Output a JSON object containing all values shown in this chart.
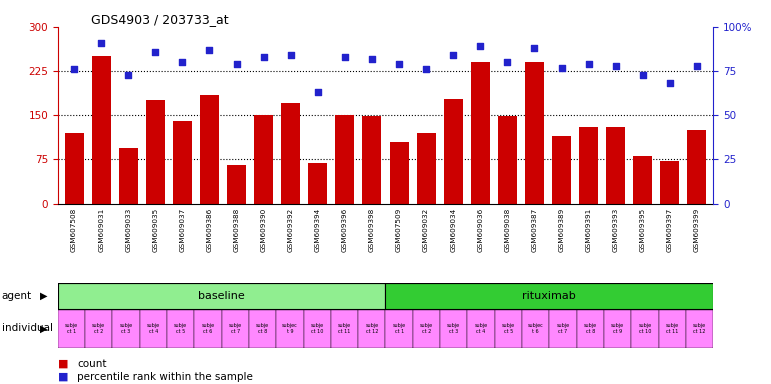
{
  "title": "GDS4903 / 203733_at",
  "samples": [
    "GSM607508",
    "GSM609031",
    "GSM609033",
    "GSM609035",
    "GSM609037",
    "GSM609386",
    "GSM609388",
    "GSM609390",
    "GSM609392",
    "GSM609394",
    "GSM609396",
    "GSM609398",
    "GSM607509",
    "GSM609032",
    "GSM609034",
    "GSM609036",
    "GSM609038",
    "GSM609387",
    "GSM609389",
    "GSM609391",
    "GSM609393",
    "GSM609395",
    "GSM609397",
    "GSM609399"
  ],
  "counts": [
    120,
    250,
    95,
    175,
    140,
    185,
    65,
    150,
    170,
    68,
    150,
    148,
    105,
    120,
    178,
    240,
    148,
    240,
    115,
    130,
    130,
    80,
    72,
    125
  ],
  "percentiles": [
    76,
    91,
    73,
    86,
    80,
    87,
    79,
    83,
    84,
    63,
    83,
    82,
    79,
    76,
    84,
    89,
    80,
    88,
    77,
    79,
    78,
    73,
    68,
    78
  ],
  "bar_color": "#cc0000",
  "dot_color": "#2222cc",
  "baseline_color": "#90ee90",
  "rituximab_color": "#33cc33",
  "individual_color": "#ff88ff",
  "left_ylim": [
    0,
    300
  ],
  "right_ylim": [
    0,
    100
  ],
  "left_yticks": [
    0,
    75,
    150,
    225,
    300
  ],
  "right_yticks": [
    0,
    25,
    50,
    75,
    100
  ],
  "right_yticklabels": [
    "0",
    "25",
    "50",
    "75",
    "100%"
  ],
  "grid_values": [
    75,
    150,
    225
  ],
  "background_color": "#ffffff",
  "individuals": [
    "subje\nct 1",
    "subje\nct 2",
    "subje\nct 3",
    "subje\nct 4",
    "subje\nct 5",
    "subje\nct 6",
    "subje\nct 7",
    "subje\nct 8",
    "subjec\nt 9",
    "subje\nct 10",
    "subje\nct 11",
    "subje\nct 12",
    "subje\nct 1",
    "subje\nct 2",
    "subje\nct 3",
    "subje\nct 4",
    "subje\nct 5",
    "subjec\nt 6",
    "subje\nct 7",
    "subje\nct 8",
    "subje\nct 9",
    "subje\nct 10",
    "subje\nct 11",
    "subje\nct 12"
  ]
}
